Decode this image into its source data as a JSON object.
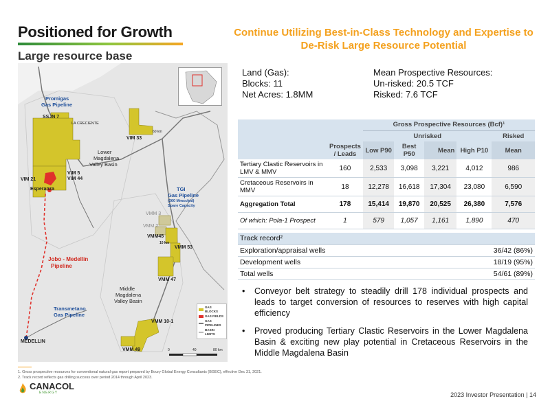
{
  "header": {
    "title": "Positioned for Growth",
    "subtitle": "Large resource base",
    "headline": "Continue Utilizing Best-in-Class Technology and Expertise to De-Risk Large Resource Potential"
  },
  "land": {
    "heading": "Land (Gas):",
    "blocks": "Blocks: 11",
    "acres": "Net Acres: 1.8MM"
  },
  "prospective": {
    "heading": "Mean Prospective Resources:",
    "unrisked": "Un-risked: 20.5 TCF",
    "risked": "Risked: 7.6 TCF"
  },
  "map": {
    "labels": {
      "promigas": "Promigas",
      "promigas2": "Gas Pipeline",
      "ssjn7": "SSJN 7",
      "la_creciente": "LA CRECIENTE",
      "vim33": "VIM 33",
      "lower_basin1": "Lower",
      "lower_basin2": "Magdalena",
      "lower_basin3": "Valley Basin",
      "vim5": "VIM 5",
      "vim44": "VIM 44",
      "vim21": "VIM 21",
      "esperanza": "Esperanza",
      "tgi1": "TGI",
      "tgi2": "Gas Pipeline",
      "tgi3": "(260 Mmscfpd)",
      "tgi4": "Spare Capacity",
      "vmm3": "VMM 3",
      "vmm2": "VMM 2",
      "vmm45": "VMM45",
      "vmm53": "VMM 53",
      "jobo1": "Jobo - Medellin",
      "jobo2": "Pipeline",
      "vmm47": "VMM 47",
      "middle1": "Middle",
      "middle2": "Magdalena",
      "middle3": "Valley Basin",
      "transmetano1": "Transmetano",
      "transmetano2": "Gas Pipeline",
      "vmm101": "VMM 10-1",
      "medellin": "MEDELLIN",
      "vmm49": "VMM 49",
      "km60": "60 km",
      "km10": "10 km",
      "scale0": "0",
      "scale40": "40",
      "scale80": "80 km"
    },
    "legend": [
      {
        "label": "GAS BLOCKS",
        "color": "#d4c52b"
      },
      {
        "label": "GAS FIELDS",
        "color": "#e0312b"
      },
      {
        "label": "GAS PIPELINES",
        "color": "#7a7a7a"
      },
      {
        "label": "BASIN LIMITS",
        "color": "#bbbbbb"
      }
    ]
  },
  "resources_table": {
    "group_header": "Gross Prospective Resources (Bcf)¹",
    "unrisked_header": "Unrisked",
    "risked_header": "Risked",
    "columns": [
      "Prospects / Leads",
      "Low P90",
      "Best P50",
      "Mean",
      "High P10",
      "Mean"
    ],
    "rows": [
      {
        "label": "Tertiary Clastic Reservoirs in LMV & MMV",
        "values": [
          "160",
          "2,533",
          "3,098",
          "3,221",
          "4,012",
          "986"
        ]
      },
      {
        "label": "Cretaceous Reservoirs in MMV",
        "values": [
          "18",
          "12,278",
          "16,618",
          "17,304",
          "23,080",
          "6,590"
        ]
      },
      {
        "label": "Aggregation Total",
        "values": [
          "178",
          "15,414",
          "19,870",
          "20,525",
          "26,380",
          "7,576"
        ]
      },
      {
        "label": "Of which: Pola-1 Prospect",
        "values": [
          "1",
          "579",
          "1,057",
          "1,161",
          "1,890",
          "470"
        ]
      }
    ]
  },
  "track_record": {
    "header": "Track record²",
    "rows": [
      {
        "label": "Exploration/appraisal wells",
        "value": "36/42 (86%)"
      },
      {
        "label": "Development wells",
        "value": "18/19 (95%)"
      },
      {
        "label": "Total wells",
        "value": "54/61 (89%)"
      }
    ]
  },
  "bullets": [
    "Conveyor belt strategy to steadily drill 178 individual prospects and leads to target conversion of resources to reserves with high capital efficiency",
    "Proved producing Tertiary Clastic Reservoirs in the Lower Magdalena Basin & exciting new play potential in Cretaceous Reservoirs in the Middle Magdalena Basin"
  ],
  "footnotes": [
    "1.   Gross prospective resources for conventional natural gas report prepared by Boury Global Energy Consultants (BGEC), effective Dec 31, 2021.",
    "2.   Track record reflects gas drilling success over period 2014 through April 2023."
  ],
  "logo": {
    "name": "CANACOL",
    "sub": "ENERGY"
  },
  "footer": "2023 Investor Presentation | 14"
}
